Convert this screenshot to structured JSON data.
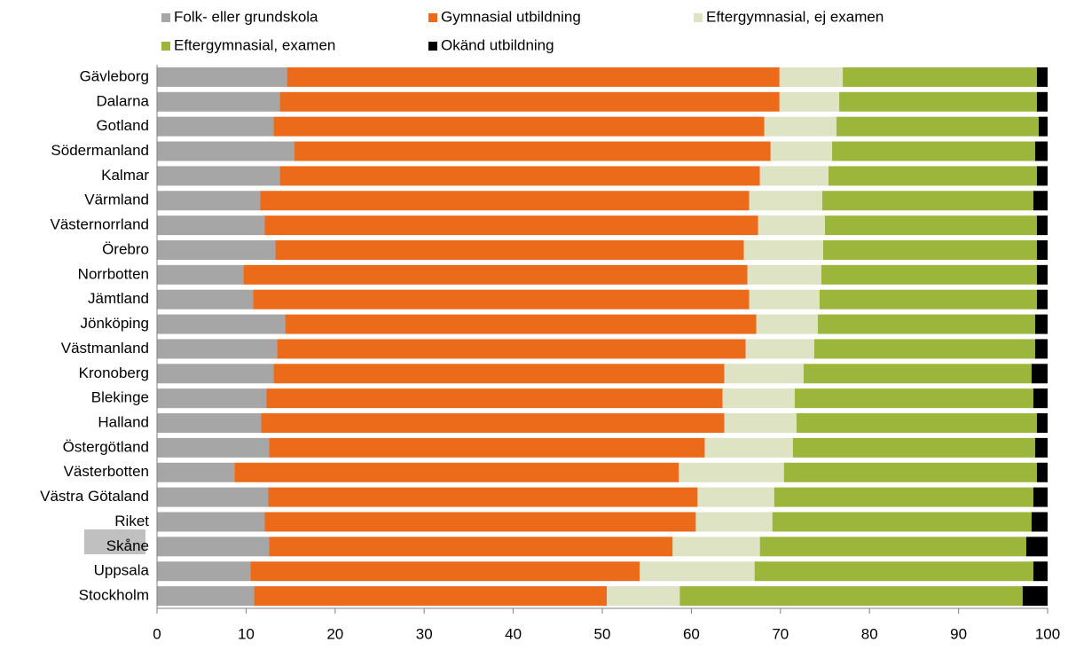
{
  "chart_data": {
    "type": "stacked_bar_horizontal",
    "categories": [
      "Gävleborg",
      "Dalarna",
      "Gotland",
      "Södermanland",
      "Kalmar",
      "Värmland",
      "Västernorrland",
      "Örebro",
      "Norrbotten",
      "Jämtland",
      "Jönköping",
      "Västmanland",
      "Kronoberg",
      "Blekinge",
      "Halland",
      "Östergötland",
      "Västerbotten",
      "Västra Götaland",
      "Riket",
      "Skåne",
      "Uppsala",
      "Stockholm"
    ],
    "series": [
      {
        "name": "Folk- eller grundskola",
        "color": "#a6a6a6",
        "values": [
          14.6,
          13.8,
          13.1,
          15.4,
          13.8,
          11.6,
          12.1,
          13.3,
          9.7,
          10.8,
          14.4,
          13.5,
          13.1,
          12.3,
          11.7,
          12.6,
          8.7,
          12.5,
          12.1,
          12.6,
          10.5,
          10.9
        ]
      },
      {
        "name": "Gymnasial utbildning",
        "color": "#ec6b1b",
        "values": [
          55.3,
          56.1,
          55.1,
          53.5,
          53.9,
          54.9,
          55.4,
          52.6,
          56.6,
          55.7,
          52.9,
          52.6,
          50.6,
          51.2,
          52.0,
          48.9,
          49.9,
          48.2,
          48.4,
          45.3,
          43.7,
          39.6
        ]
      },
      {
        "name": "Eftergymnasial, ej examen",
        "color": "#dde3c3",
        "values": [
          7.1,
          6.7,
          8.1,
          6.9,
          7.7,
          8.2,
          7.5,
          8.9,
          8.3,
          7.9,
          6.9,
          7.7,
          8.9,
          8.1,
          8.1,
          9.9,
          11.8,
          8.6,
          8.6,
          9.8,
          12.9,
          8.2
        ]
      },
      {
        "name": "Eftergymnasial, examen",
        "color": "#9cb63b",
        "values": [
          21.8,
          22.2,
          22.7,
          22.8,
          23.4,
          23.7,
          23.8,
          24.0,
          24.2,
          24.4,
          24.4,
          24.8,
          25.6,
          26.8,
          27.0,
          27.2,
          28.4,
          29.1,
          29.1,
          29.9,
          31.3,
          38.5
        ]
      },
      {
        "name": "Okänd utbildning",
        "color": "#000000",
        "values": [
          1.2,
          1.2,
          1.0,
          1.4,
          1.2,
          1.6,
          1.2,
          1.2,
          1.2,
          1.2,
          1.4,
          1.4,
          1.8,
          1.6,
          1.2,
          1.4,
          1.2,
          1.6,
          1.8,
          2.4,
          1.6,
          2.8
        ]
      }
    ],
    "xlim": [
      0,
      100
    ],
    "xticks": [
      0,
      10,
      20,
      30,
      40,
      50,
      60,
      70,
      80,
      90,
      100
    ],
    "grid": false
  }
}
